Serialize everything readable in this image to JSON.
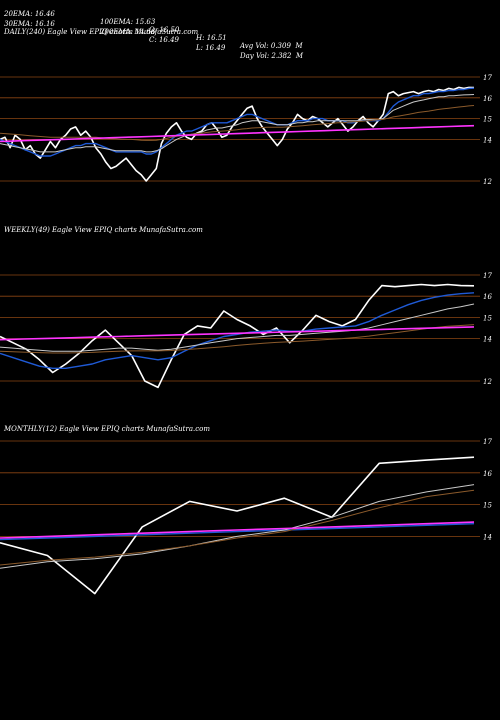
{
  "header": {
    "row1": [
      "20EMA: 16.46",
      "100EMA: 15.63",
      "O: 16.50",
      "H: 16.51",
      "Avg Vol: 0.309  M"
    ],
    "row2": [
      "30EMA: 16.16",
      "200EMA: 14.66",
      "C: 16.49",
      "L: 16.49",
      "Day Vol: 2.382  M"
    ]
  },
  "colors": {
    "background": "#000000",
    "price": "#ffffff",
    "ema_fast": "#1f5ad6",
    "ema_mid": "#c8c8c8",
    "ema_slow": "#8b5a2b",
    "trend": "#ff33ff",
    "grid": "#8b4513"
  },
  "chart_data": [
    {
      "type": "line",
      "title": "DAILY(240) Eagle   View  EPIQ charts MunafaSutra.com",
      "yticks": [
        "17",
        "16",
        "15",
        "14",
        "12"
      ],
      "ylim": [
        11.5,
        17.2
      ],
      "series": [
        {
          "role": "price",
          "values": [
            14.0,
            14.1,
            13.6,
            14.2,
            14.0,
            13.5,
            13.7,
            13.3,
            13.1,
            13.5,
            13.9,
            13.6,
            14.0,
            14.2,
            14.5,
            14.6,
            14.2,
            14.4,
            14.1,
            13.6,
            13.3,
            12.9,
            12.6,
            12.7,
            12.9,
            13.1,
            12.8,
            12.5,
            12.3,
            12.0,
            12.3,
            12.6,
            13.8,
            14.3,
            14.6,
            14.8,
            14.4,
            14.1,
            14.0,
            14.3,
            14.4,
            14.7,
            14.8,
            14.5,
            14.1,
            14.2,
            14.6,
            14.9,
            15.2,
            15.5,
            15.6,
            15.0,
            14.6,
            14.3,
            14.0,
            13.7,
            14.0,
            14.5,
            14.8,
            15.2,
            15.0,
            14.9,
            15.1,
            15.0,
            14.8,
            14.6,
            14.8,
            15.0,
            14.7,
            14.4,
            14.6,
            14.9,
            15.1,
            14.8,
            14.6,
            14.9,
            15.2,
            16.2,
            16.3,
            16.1,
            16.2,
            16.25,
            16.3,
            16.2,
            16.3,
            16.35,
            16.3,
            16.4,
            16.35,
            16.45,
            16.4,
            16.5,
            16.45,
            16.5,
            16.49
          ]
        },
        {
          "role": "ema_fast",
          "values": [
            14.0,
            13.9,
            13.8,
            13.7,
            13.6,
            13.5,
            13.4,
            13.3,
            13.2,
            13.2,
            13.2,
            13.3,
            13.4,
            13.5,
            13.6,
            13.7,
            13.7,
            13.8,
            13.8,
            13.8,
            13.7,
            13.6,
            13.5,
            13.4,
            13.4,
            13.4,
            13.4,
            13.4,
            13.4,
            13.3,
            13.3,
            13.4,
            13.6,
            13.8,
            14.0,
            14.2,
            14.3,
            14.4,
            14.4,
            14.5,
            14.6,
            14.7,
            14.8,
            14.8,
            14.8,
            14.8,
            14.9,
            15.0,
            15.1,
            15.2,
            15.2,
            15.1,
            15.0,
            14.9,
            14.8,
            14.7,
            14.7,
            14.7,
            14.8,
            14.9,
            14.9,
            14.9,
            15.0,
            15.0,
            15.0,
            14.9,
            14.9,
            14.9,
            14.9,
            14.8,
            14.8,
            14.9,
            14.9,
            14.9,
            14.9,
            14.9,
            15.0,
            15.3,
            15.6,
            15.8,
            15.9,
            16.0,
            16.1,
            16.1,
            16.2,
            16.2,
            16.25,
            16.3,
            16.3,
            16.35,
            16.35,
            16.4,
            16.4,
            16.45,
            16.46
          ]
        },
        {
          "role": "ema_mid",
          "values": [
            13.8,
            13.75,
            13.7,
            13.65,
            13.6,
            13.55,
            13.5,
            13.45,
            13.4,
            13.4,
            13.4,
            13.4,
            13.45,
            13.5,
            13.55,
            13.6,
            13.6,
            13.65,
            13.65,
            13.65,
            13.6,
            13.55,
            13.5,
            13.45,
            13.45,
            13.45,
            13.45,
            13.45,
            13.45,
            13.4,
            13.4,
            13.45,
            13.55,
            13.7,
            13.85,
            14.0,
            14.1,
            14.2,
            14.25,
            14.3,
            14.35,
            14.45,
            14.5,
            14.55,
            14.55,
            14.6,
            14.65,
            14.7,
            14.8,
            14.85,
            14.9,
            14.9,
            14.85,
            14.8,
            14.75,
            14.7,
            14.7,
            14.7,
            14.75,
            14.8,
            14.8,
            14.85,
            14.85,
            14.9,
            14.9,
            14.9,
            14.9,
            14.9,
            14.9,
            14.9,
            14.9,
            14.9,
            14.95,
            14.95,
            14.95,
            14.95,
            15.0,
            15.2,
            15.4,
            15.5,
            15.6,
            15.7,
            15.8,
            15.85,
            15.9,
            15.95,
            16.0,
            16.05,
            16.05,
            16.1,
            16.1,
            16.12,
            16.14,
            16.15,
            16.16
          ]
        },
        {
          "role": "ema_slow",
          "values": [
            14.3,
            14.28,
            14.26,
            14.24,
            14.22,
            14.2,
            14.18,
            14.16,
            14.14,
            14.12,
            14.1,
            14.1,
            14.1,
            14.1,
            14.1,
            14.1,
            14.1,
            14.1,
            14.1,
            14.1,
            14.08,
            14.06,
            14.04,
            14.02,
            14.0,
            14.0,
            14.0,
            13.98,
            13.96,
            13.95,
            13.95,
            13.96,
            14.0,
            14.05,
            14.1,
            14.15,
            14.2,
            14.22,
            14.25,
            14.28,
            14.3,
            14.33,
            14.36,
            14.38,
            14.4,
            14.42,
            14.44,
            14.46,
            14.5,
            14.52,
            14.55,
            14.56,
            14.57,
            14.58,
            14.58,
            14.58,
            14.58,
            14.6,
            14.62,
            14.64,
            14.66,
            14.68,
            14.7,
            14.72,
            14.74,
            14.76,
            14.78,
            14.8,
            14.8,
            14.82,
            14.84,
            14.86,
            14.88,
            14.9,
            14.92,
            14.94,
            14.96,
            15.02,
            15.08,
            15.12,
            15.16,
            15.2,
            15.25,
            15.3,
            15.33,
            15.36,
            15.4,
            15.44,
            15.47,
            15.5,
            15.53,
            15.56,
            15.58,
            15.61,
            15.63
          ]
        },
        {
          "role": "trend",
          "values": [
            13.9,
            13.92,
            13.94,
            13.96,
            13.98,
            14.0,
            14.02,
            14.04,
            14.06,
            14.08,
            14.1,
            14.12,
            14.14,
            14.16,
            14.18,
            14.2,
            14.22,
            14.24,
            14.26,
            14.28,
            14.3,
            14.32,
            14.34,
            14.36,
            14.38,
            14.4,
            14.42,
            14.44,
            14.46,
            14.48,
            14.5,
            14.52,
            14.54,
            14.56,
            14.58,
            14.6,
            14.62,
            14.64,
            14.66
          ]
        }
      ]
    },
    {
      "type": "line",
      "title": "WEEKLY(49) Eagle   View  EPIQ charts MunafaSutra.com",
      "yticks": [
        "17",
        "16",
        "15",
        "14",
        "12"
      ],
      "ylim": [
        11.5,
        17.2
      ],
      "series": [
        {
          "role": "price",
          "values": [
            14.1,
            13.8,
            13.5,
            13.0,
            12.4,
            12.8,
            13.3,
            13.9,
            14.4,
            13.8,
            13.2,
            12.0,
            11.7,
            13.0,
            14.2,
            14.6,
            14.5,
            15.3,
            14.9,
            14.6,
            14.2,
            14.5,
            13.8,
            14.4,
            15.1,
            14.8,
            14.6,
            14.9,
            15.8,
            16.5,
            16.45,
            16.5,
            16.55,
            16.5,
            16.55,
            16.5,
            16.49
          ]
        },
        {
          "role": "ema_fast",
          "values": [
            13.3,
            13.1,
            12.9,
            12.7,
            12.6,
            12.6,
            12.7,
            12.8,
            13.0,
            13.1,
            13.2,
            13.1,
            13.0,
            13.1,
            13.4,
            13.7,
            13.9,
            14.1,
            14.2,
            14.3,
            14.35,
            14.4,
            14.35,
            14.35,
            14.45,
            14.5,
            14.55,
            14.6,
            14.8,
            15.1,
            15.35,
            15.6,
            15.8,
            15.95,
            16.05,
            16.12,
            16.16
          ]
        },
        {
          "role": "ema_mid",
          "values": [
            13.6,
            13.55,
            13.5,
            13.45,
            13.4,
            13.4,
            13.4,
            13.45,
            13.5,
            13.55,
            13.55,
            13.5,
            13.45,
            13.5,
            13.6,
            13.7,
            13.8,
            13.9,
            14.0,
            14.05,
            14.1,
            14.15,
            14.15,
            14.2,
            14.25,
            14.3,
            14.35,
            14.4,
            14.5,
            14.65,
            14.8,
            14.95,
            15.1,
            15.25,
            15.4,
            15.5,
            15.63
          ]
        },
        {
          "role": "ema_slow",
          "values": [
            13.4,
            13.38,
            13.36,
            13.34,
            13.32,
            13.32,
            13.33,
            13.35,
            13.38,
            13.4,
            13.42,
            13.42,
            13.42,
            13.44,
            13.48,
            13.52,
            13.57,
            13.62,
            13.68,
            13.73,
            13.78,
            13.82,
            13.85,
            13.88,
            13.92,
            13.96,
            14.0,
            14.05,
            14.12,
            14.2,
            14.28,
            14.36,
            14.44,
            14.52,
            14.58,
            14.62,
            14.66
          ]
        },
        {
          "role": "trend",
          "values": [
            13.95,
            13.98,
            14.01,
            14.04,
            14.07,
            14.1,
            14.13,
            14.16,
            14.19,
            14.22,
            14.25,
            14.28,
            14.31,
            14.34,
            14.37,
            14.4,
            14.43,
            14.46,
            14.49,
            14.52,
            14.55
          ]
        }
      ]
    },
    {
      "type": "line",
      "title": "MONTHLY(12) Eagle   View  EPIQ charts MunafaSutra.com",
      "yticks": [
        "17",
        "16",
        "15",
        "14"
      ],
      "ylim": [
        11.5,
        17.2
      ],
      "series": [
        {
          "role": "price",
          "values": [
            13.8,
            13.4,
            12.2,
            14.3,
            15.1,
            14.8,
            15.2,
            14.6,
            16.3,
            16.4,
            16.49
          ]
        },
        {
          "role": "ema_fast",
          "values": [
            13.9,
            13.95,
            14.0,
            14.05,
            14.1,
            14.15,
            14.2,
            14.25,
            14.3,
            14.35,
            14.4
          ]
        },
        {
          "role": "ema_mid",
          "values": [
            13.0,
            13.2,
            13.3,
            13.45,
            13.7,
            14.0,
            14.2,
            14.6,
            15.1,
            15.4,
            15.63
          ]
        },
        {
          "role": "ema_slow",
          "values": [
            13.1,
            13.25,
            13.35,
            13.5,
            13.7,
            13.95,
            14.15,
            14.5,
            14.9,
            15.25,
            15.45
          ]
        },
        {
          "role": "trend",
          "values": [
            13.95,
            14.0,
            14.05,
            14.1,
            14.15,
            14.2,
            14.25,
            14.3,
            14.35,
            14.4,
            14.45
          ]
        }
      ]
    }
  ]
}
